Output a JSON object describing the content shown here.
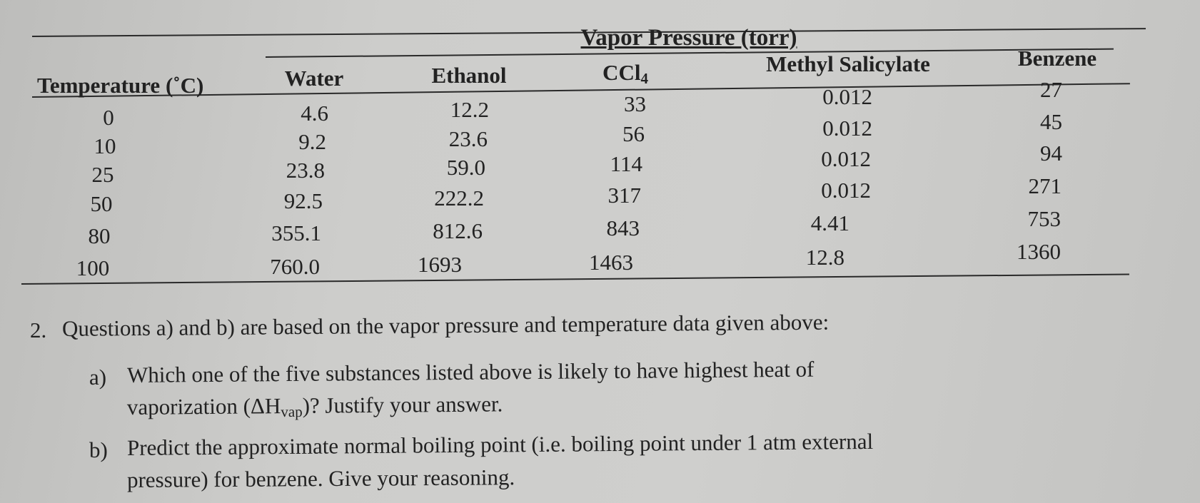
{
  "table": {
    "group_header": "Vapor Pressure (torr)",
    "temperature_header": "Temperature (˚C)",
    "columns": [
      {
        "name": "Water",
        "sub": ""
      },
      {
        "name": "Ethanol",
        "sub": ""
      },
      {
        "name": "CCl",
        "sub": "4"
      },
      {
        "name": "Methyl Salicylate",
        "sub": ""
      },
      {
        "name": "Benzene",
        "sub": ""
      }
    ],
    "temperatures": [
      "0",
      "10",
      "25",
      "50",
      "80",
      "100"
    ],
    "rows": [
      [
        "4.6",
        "12.2",
        "33",
        "0.012",
        "27"
      ],
      [
        "9.2",
        "23.6",
        "56",
        "0.012",
        "45"
      ],
      [
        "23.8",
        "59.0",
        "114",
        "0.012",
        "94"
      ],
      [
        "92.5",
        "222.2",
        "317",
        "0.012",
        "271"
      ],
      [
        "355.1",
        "812.6",
        "843",
        "4.41",
        "753"
      ],
      [
        "760.0",
        "1693",
        "1463",
        "12.8",
        "1360"
      ]
    ]
  },
  "questions": {
    "q2_number": "2.",
    "q2_text": "Questions a) and b) are based on the vapor pressure and temperature data given above:",
    "a_label": "a)",
    "a_line1": "Which one of the five substances listed above is likely to have highest heat of",
    "a_line2_pre": "vaporization (ΔH",
    "a_line2_sub": "vap",
    "a_line2_post": ")? Justify your answer.",
    "b_label": "b)",
    "b_line1": "Predict the approximate normal boiling point (i.e. boiling point under 1 atm external",
    "b_line2": "pressure) for benzene. Give your reasoning."
  }
}
